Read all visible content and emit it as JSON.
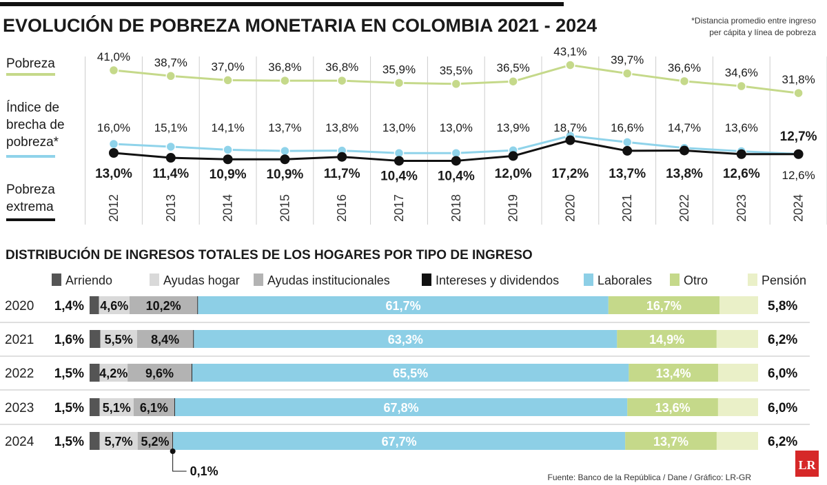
{
  "header": {
    "title": "EVOLUCIÓN DE POBREZA MONETARIA EN COLOMBIA 2021 - 2024",
    "note_line1": "*Distancia promedio entre ingreso",
    "note_line2": "per cápita y línea de pobreza"
  },
  "colors": {
    "pobreza": "#c5d98a",
    "brecha": "#8fd3ea",
    "extrema": "#111111",
    "grid": "#cccccc",
    "arriendo": "#555555",
    "ayudas_hogar": "#d9d9d9",
    "ayudas_institucionales": "#b3b3b3",
    "intereses": "#111111",
    "laborales": "#8dcfe6",
    "otro": "#c5d98a",
    "pension": "#eaf0c8",
    "logo": "#d62828"
  },
  "chart_data": [
    {
      "type": "line",
      "x": [
        "2012",
        "2013",
        "2014",
        "2015",
        "2016",
        "2017",
        "2018",
        "2019",
        "2020",
        "2021",
        "2022",
        "2023",
        "2024"
      ],
      "series": [
        {
          "name": "Pobreza",
          "values": [
            41.0,
            38.7,
            37.0,
            36.8,
            36.8,
            35.9,
            35.5,
            36.5,
            43.1,
            39.7,
            36.6,
            34.6,
            31.8
          ],
          "labels": [
            "41,0%",
            "38,7%",
            "37,0%",
            "36,8%",
            "36,8%",
            "35,9%",
            "35,5%",
            "36,5%",
            "43,1%",
            "39,7%",
            "36,6%",
            "34,6%",
            "31,8%"
          ]
        },
        {
          "name": "Índice de brecha de pobreza*",
          "values": [
            16.0,
            15.1,
            14.1,
            13.7,
            13.8,
            13.0,
            13.0,
            13.9,
            18.7,
            16.6,
            14.7,
            13.6,
            12.7
          ],
          "labels": [
            "16,0%",
            "15,1%",
            "14,1%",
            "13,7%",
            "13,8%",
            "13,0%",
            "13,0%",
            "13,9%",
            "18,7%",
            "16,6%",
            "14,7%",
            "13,6%",
            "12,7%"
          ]
        },
        {
          "name": "Pobreza extrema",
          "values": [
            13.0,
            11.4,
            10.9,
            10.9,
            11.7,
            10.4,
            10.4,
            12.0,
            17.2,
            13.7,
            13.8,
            12.6,
            12.6
          ],
          "labels": [
            "13,0%",
            "11,4%",
            "10,9%",
            "10,9%",
            "11,7%",
            "10,4%",
            "10,4%",
            "12,0%",
            "17,2%",
            "13,7%",
            "13,8%",
            "12,6%",
            "12,6%"
          ]
        }
      ],
      "legend_labels": {
        "pobreza": "Pobreza",
        "brecha_line1": "Índice de",
        "brecha_line2": "brecha de",
        "brecha_line3": "pobreza*",
        "extrema_line1": "Pobreza",
        "extrema_line2": "extrema"
      }
    },
    {
      "type": "bar",
      "orientation": "horizontal-stacked",
      "title": "DISTRIBUCIÓN DE INGRESOS TOTALES DE LOS HOGARES POR TIPO DE INGRESO",
      "categories": [
        "2020",
        "2021",
        "2022",
        "2023",
        "2024"
      ],
      "series": [
        {
          "name": "Arriendo",
          "key": "arriendo",
          "values": [
            1.4,
            1.6,
            1.5,
            1.5,
            1.5
          ],
          "labels": [
            "1,4%",
            "1,6%",
            "1,5%",
            "1,5%",
            "1,5%"
          ]
        },
        {
          "name": "Ayudas hogar",
          "key": "ayudas_hogar",
          "values": [
            4.6,
            5.5,
            4.2,
            5.1,
            5.7
          ],
          "labels": [
            "4,6%",
            "5,5%",
            "4,2%",
            "5,1%",
            "5,7%"
          ]
        },
        {
          "name": "Ayudas institucionales",
          "key": "ayudas_institucionales",
          "values": [
            10.2,
            8.4,
            9.6,
            6.1,
            5.2
          ],
          "labels": [
            "10,2%",
            "8,4%",
            "9,6%",
            "6,1%",
            "5,2%"
          ]
        },
        {
          "name": "Intereses y dividendos",
          "key": "intereses",
          "values": [
            0.1,
            0.1,
            0.1,
            0.1,
            0.1
          ],
          "labels": [
            "",
            "",
            "",
            "",
            "0,1%"
          ]
        },
        {
          "name": "Laborales",
          "key": "laborales",
          "values": [
            61.7,
            63.3,
            65.5,
            67.8,
            67.7
          ],
          "labels": [
            "61,7%",
            "63,3%",
            "65,5%",
            "67,8%",
            "67,7%"
          ]
        },
        {
          "name": "Otro",
          "key": "otro",
          "values": [
            16.7,
            14.9,
            13.4,
            13.6,
            13.7
          ],
          "labels": [
            "16,7%",
            "14,9%",
            "13,4%",
            "13,6%",
            "13,7%"
          ]
        },
        {
          "name": "Pensión",
          "key": "pension",
          "values": [
            5.8,
            6.2,
            6.0,
            6.0,
            6.2
          ],
          "labels": [
            "5,8%",
            "6,2%",
            "6,0%",
            "6,0%",
            "6,2%"
          ]
        }
      ]
    }
  ],
  "footer": {
    "source": "Fuente: Banco de la República / Dane  / Gráfico: LR-GR",
    "logo_text": "LR"
  }
}
